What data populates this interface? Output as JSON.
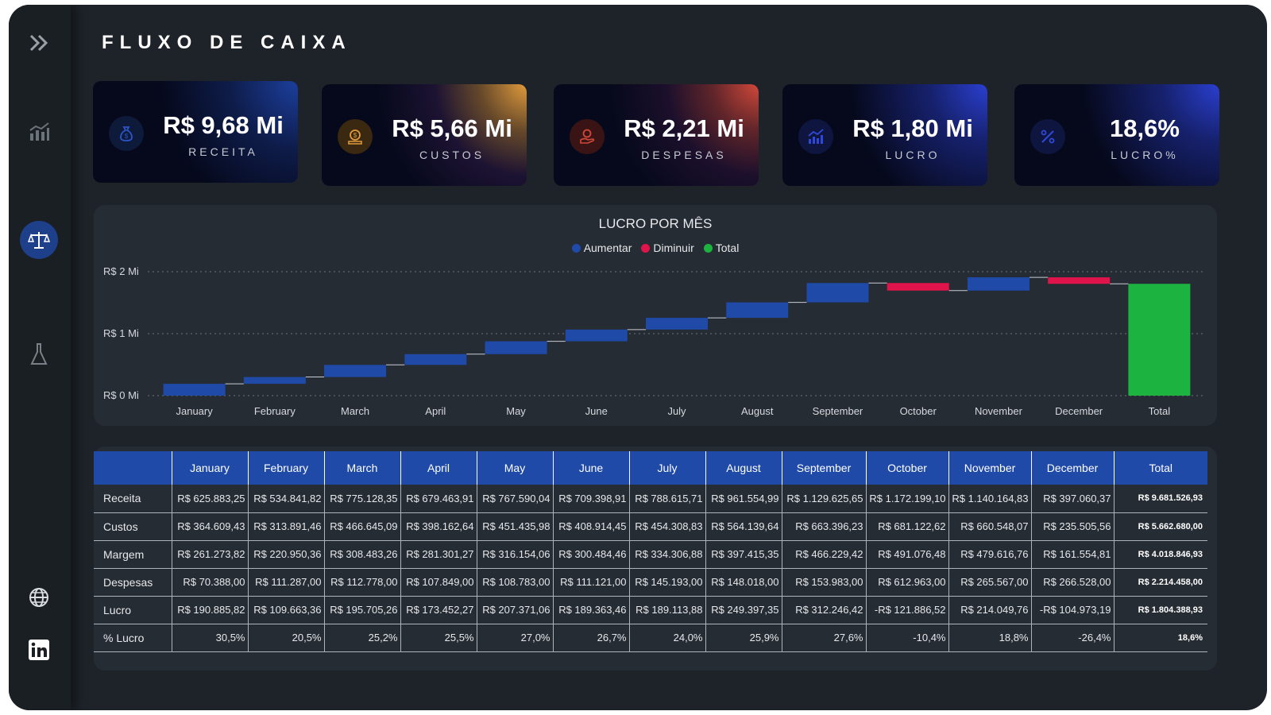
{
  "title": "FLUXO DE CAIXA",
  "sidebar": {
    "icons": [
      "chevrons-right-icon",
      "bar-chart-icon",
      "scale-balance-icon",
      "flask-icon",
      "globe-icon",
      "linkedin-icon"
    ]
  },
  "kpis": [
    {
      "value": "R$ 9,68 Mi",
      "label": "RECEITA",
      "icon": "money-bag-icon",
      "accent": "#1c3f9e"
    },
    {
      "value": "R$ 5,66 Mi",
      "label": "CUSTOS",
      "icon": "coin-hand-icon",
      "accent": "#e09a3b"
    },
    {
      "value": "R$ 2,21 Mi",
      "label": "DESPESAS",
      "icon": "hand-coin-icon",
      "accent": "#d0483a"
    },
    {
      "value": "R$ 1,80 Mi",
      "label": "LUCRO",
      "icon": "growth-chart-icon",
      "accent": "#2a3fd0"
    },
    {
      "value": "18,6%",
      "label": "LUCRO%",
      "icon": "percent-icon",
      "accent": "#2a3fd0"
    }
  ],
  "chart_data": {
    "type": "waterfall",
    "title": "LUCRO POR MÊS",
    "legend": [
      {
        "name": "Aumentar",
        "color": "#1f4aa8"
      },
      {
        "name": "Diminuir",
        "color": "#e0144a"
      },
      {
        "name": "Total",
        "color": "#1db340"
      }
    ],
    "legend_position": "top-center",
    "y_ticks": [
      {
        "value": 2000000,
        "label": "R$ 2 Mi"
      },
      {
        "value": 1000000,
        "label": "R$ 1 Mi"
      },
      {
        "value": 0,
        "label": "R$ 0 Mi"
      }
    ],
    "ylim": [
      0,
      2000000
    ],
    "categories": [
      "January",
      "February",
      "March",
      "April",
      "May",
      "June",
      "July",
      "August",
      "September",
      "October",
      "November",
      "December",
      "Total"
    ],
    "values": [
      190885.82,
      109663.36,
      195705.26,
      173452.27,
      207371.06,
      189363.46,
      189113.88,
      249397.35,
      312246.42,
      -121886.52,
      214049.76,
      -104973.19,
      1804388.93
    ],
    "grid": true
  },
  "table": {
    "headers": [
      "",
      "January",
      "February",
      "March",
      "April",
      "May",
      "June",
      "July",
      "August",
      "September",
      "October",
      "November",
      "December",
      "Total"
    ],
    "rows": [
      {
        "label": "Receita",
        "cells": [
          "R$ 625.883,25",
          "R$ 534.841,82",
          "R$ 775.128,35",
          "R$ 679.463,91",
          "R$ 767.590,04",
          "R$ 709.398,91",
          "R$ 788.615,71",
          "R$ 961.554,99",
          "R$ 1.129.625,65",
          "R$ 1.172.199,10",
          "R$ 1.140.164,83",
          "R$ 397.060,37",
          "R$ 9.681.526,93"
        ]
      },
      {
        "label": "Custos",
        "cells": [
          "R$ 364.609,43",
          "R$ 313.891,46",
          "R$ 466.645,09",
          "R$ 398.162,64",
          "R$ 451.435,98",
          "R$ 408.914,45",
          "R$ 454.308,83",
          "R$ 564.139,64",
          "R$ 663.396,23",
          "R$ 681.122,62",
          "R$ 660.548,07",
          "R$ 235.505,56",
          "R$ 5.662.680,00"
        ]
      },
      {
        "label": "Margem",
        "cells": [
          "R$ 261.273,82",
          "R$ 220.950,36",
          "R$ 308.483,26",
          "R$ 281.301,27",
          "R$ 316.154,06",
          "R$ 300.484,46",
          "R$ 334.306,88",
          "R$ 397.415,35",
          "R$ 466.229,42",
          "R$ 491.076,48",
          "R$ 479.616,76",
          "R$ 161.554,81",
          "R$ 4.018.846,93"
        ]
      },
      {
        "label": "Despesas",
        "cells": [
          "R$ 70.388,00",
          "R$ 111.287,00",
          "R$ 112.778,00",
          "R$ 107.849,00",
          "R$ 108.783,00",
          "R$ 111.121,00",
          "R$ 145.193,00",
          "R$ 148.018,00",
          "R$ 153.983,00",
          "R$ 612.963,00",
          "R$ 265.567,00",
          "R$ 266.528,00",
          "R$ 2.214.458,00"
        ]
      },
      {
        "label": "Lucro",
        "cells": [
          "R$ 190.885,82",
          "R$ 109.663,36",
          "R$ 195.705,26",
          "R$ 173.452,27",
          "R$ 207.371,06",
          "R$ 189.363,46",
          "R$ 189.113,88",
          "R$ 249.397,35",
          "R$ 312.246,42",
          "-R$ 121.886,52",
          "R$ 214.049,76",
          "-R$ 104.973,19",
          "R$ 1.804.388,93"
        ]
      },
      {
        "label": "% Lucro",
        "cells": [
          "30,5%",
          "20,5%",
          "25,2%",
          "25,5%",
          "27,0%",
          "26,7%",
          "24,0%",
          "25,9%",
          "27,6%",
          "-10,4%",
          "18,8%",
          "-26,4%",
          "18,6%"
        ]
      }
    ]
  }
}
